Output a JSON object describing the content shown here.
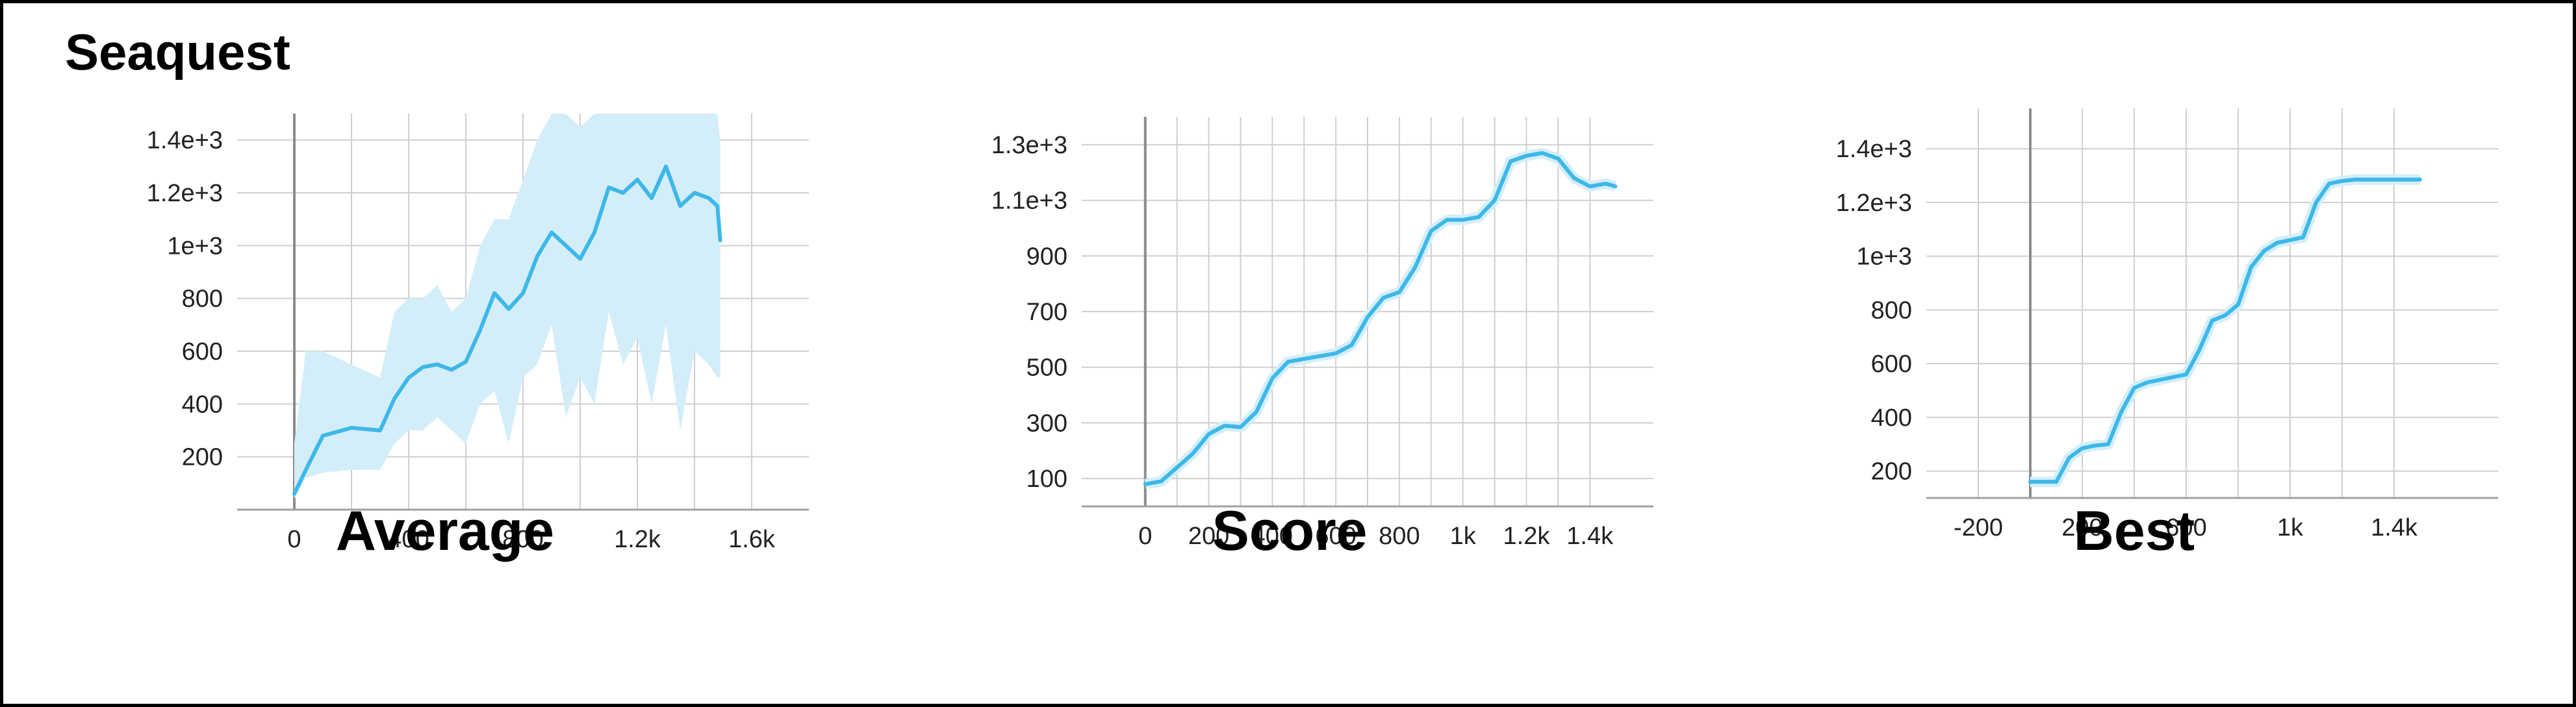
{
  "figure": {
    "title": "Seaquest"
  },
  "colors": {
    "line": "#3db8e8",
    "band": "#d4eef9",
    "grid": "#cfcfcf",
    "axis": "#a0a0a0",
    "zero_line": "#8c8c8c"
  },
  "chart_data": [
    {
      "type": "line",
      "label": "Average",
      "xlim": [
        -200,
        1800
      ],
      "ylim": [
        0,
        1500
      ],
      "xticks": [
        0,
        400,
        800,
        1200,
        1600
      ],
      "xtick_labels": [
        "0",
        "400",
        "800",
        "1.2k",
        "1.6k"
      ],
      "yticks": [
        200,
        400,
        600,
        800,
        1000,
        1200,
        1400
      ],
      "ytick_labels": [
        "200",
        "400",
        "600",
        "800",
        "1e+3",
        "1.2e+3",
        "1.4e+3"
      ],
      "grid": true,
      "band": true,
      "series": [
        {
          "x": [
            0,
            40,
            100,
            200,
            300,
            350,
            400,
            450,
            500,
            550,
            600,
            650,
            700,
            750,
            800,
            850,
            900,
            950,
            1000,
            1050,
            1100,
            1150,
            1200,
            1250,
            1300,
            1350,
            1400,
            1450,
            1480,
            1490
          ],
          "y": [
            60,
            150,
            280,
            310,
            300,
            420,
            500,
            540,
            550,
            530,
            560,
            680,
            820,
            760,
            820,
            960,
            1050,
            1000,
            950,
            1050,
            1220,
            1200,
            1250,
            1180,
            1300,
            1150,
            1200,
            1180,
            1150,
            1020
          ],
          "band_low": [
            40,
            120,
            140,
            150,
            150,
            250,
            300,
            300,
            350,
            300,
            250,
            400,
            450,
            250,
            500,
            550,
            700,
            350,
            500,
            400,
            750,
            550,
            650,
            400,
            700,
            300,
            600,
            550,
            500,
            500
          ],
          "band_high": [
            250,
            600,
            600,
            550,
            500,
            750,
            800,
            800,
            850,
            750,
            800,
            1000,
            1100,
            1100,
            1250,
            1400,
            1500,
            1500,
            1450,
            1500,
            1500,
            1500,
            1500,
            1500,
            1500,
            1500,
            1500,
            1500,
            1500,
            1400
          ]
        }
      ]
    },
    {
      "type": "line",
      "label": "Score",
      "xlim": [
        -200,
        1600
      ],
      "ylim": [
        0,
        1400
      ],
      "xticks": [
        0,
        200,
        400,
        600,
        800,
        1000,
        1200,
        1400
      ],
      "xtick_labels": [
        "0",
        "200",
        "400",
        "600",
        "800",
        "1k",
        "1.2k",
        "1.4k"
      ],
      "yticks": [
        100,
        300,
        500,
        700,
        900,
        1100,
        1300
      ],
      "ytick_labels": [
        "100",
        "300",
        "500",
        "700",
        "900",
        "1.1e+3",
        "1.3e+3"
      ],
      "grid": true,
      "band": false,
      "series": [
        {
          "x": [
            0,
            50,
            100,
            150,
            200,
            250,
            300,
            350,
            400,
            450,
            500,
            550,
            600,
            650,
            700,
            750,
            800,
            850,
            900,
            950,
            1000,
            1050,
            1100,
            1150,
            1200,
            1250,
            1300,
            1350,
            1400,
            1450,
            1480
          ],
          "y": [
            80,
            90,
            140,
            190,
            260,
            290,
            285,
            340,
            460,
            520,
            530,
            540,
            550,
            580,
            680,
            750,
            770,
            860,
            990,
            1030,
            1030,
            1040,
            1100,
            1240,
            1260,
            1270,
            1250,
            1180,
            1150,
            1160,
            1150
          ]
        }
      ]
    },
    {
      "type": "line",
      "label": "Best",
      "xlim": [
        -400,
        1800
      ],
      "ylim": [
        100,
        1550
      ],
      "xticks": [
        -200,
        200,
        600,
        1000,
        1400
      ],
      "xtick_labels": [
        "-200",
        "200",
        "600",
        "1k",
        "1.4k"
      ],
      "yticks": [
        200,
        400,
        600,
        800,
        1000,
        1200,
        1400
      ],
      "ytick_labels": [
        "200",
        "400",
        "600",
        "800",
        "1e+3",
        "1.2e+3",
        "1.4e+3"
      ],
      "grid": true,
      "band": false,
      "series": [
        {
          "x": [
            0,
            100,
            150,
            200,
            250,
            300,
            350,
            400,
            450,
            500,
            550,
            600,
            650,
            700,
            750,
            800,
            850,
            900,
            950,
            1000,
            1050,
            1100,
            1150,
            1200,
            1250,
            1300,
            1400,
            1500
          ],
          "y": [
            160,
            160,
            250,
            285,
            295,
            300,
            420,
            510,
            530,
            540,
            550,
            560,
            650,
            760,
            780,
            820,
            960,
            1020,
            1050,
            1060,
            1070,
            1200,
            1270,
            1280,
            1285,
            1285,
            1285,
            1285
          ]
        }
      ]
    }
  ]
}
